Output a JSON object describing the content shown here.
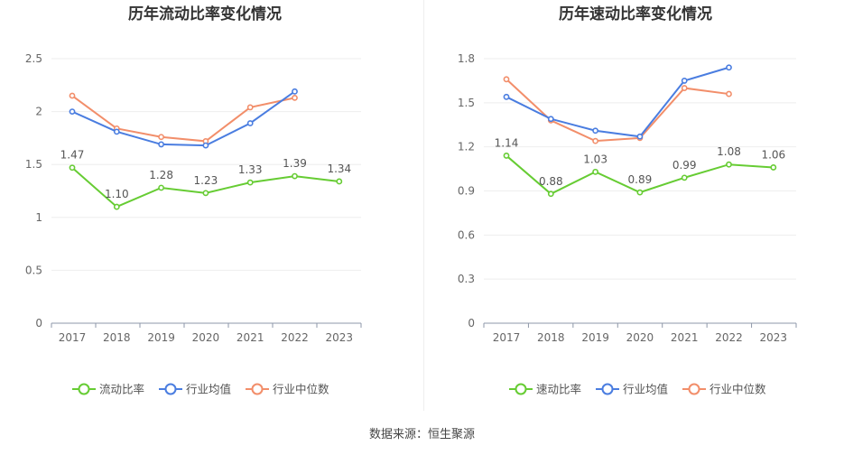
{
  "colors": {
    "series1": "#66cc33",
    "series2": "#4a7de0",
    "series3": "#f28e6a",
    "axis": "#8e97a8",
    "grid": "#eeeeee",
    "tick_text": "#666666",
    "title": "#333333"
  },
  "source_text": "数据来源：恒生聚源",
  "chart_data": [
    {
      "type": "line",
      "title": "历年流动比率变化情况",
      "categories": [
        "2017",
        "2018",
        "2019",
        "2020",
        "2021",
        "2022",
        "2023"
      ],
      "ylim": [
        0,
        2.5
      ],
      "yticks": [
        "0",
        "0.5",
        "1",
        "1.5",
        "2",
        "2.5"
      ],
      "ytick_values": [
        0,
        0.5,
        1,
        1.5,
        2,
        2.5
      ],
      "grid": true,
      "legend_position": "bottom",
      "series": [
        {
          "name": "流动比率",
          "values": [
            1.47,
            1.1,
            1.28,
            1.23,
            1.33,
            1.39,
            1.34
          ],
          "labels": [
            "1.47",
            "1.10",
            "1.28",
            "1.23",
            "1.33",
            "1.39",
            "1.34"
          ]
        },
        {
          "name": "行业均值",
          "values": [
            2.0,
            1.81,
            1.69,
            1.68,
            1.89,
            2.19,
            null
          ]
        },
        {
          "name": "行业中位数",
          "values": [
            2.15,
            1.84,
            1.76,
            1.72,
            2.04,
            2.13,
            null
          ]
        }
      ]
    },
    {
      "type": "line",
      "title": "历年速动比率变化情况",
      "categories": [
        "2017",
        "2018",
        "2019",
        "2020",
        "2021",
        "2022",
        "2023"
      ],
      "ylim": [
        0,
        1.8
      ],
      "yticks": [
        "0",
        "0.3",
        "0.6",
        "0.9",
        "1.2",
        "1.5",
        "1.8"
      ],
      "ytick_values": [
        0,
        0.3,
        0.6,
        0.9,
        1.2,
        1.5,
        1.8
      ],
      "grid": true,
      "legend_position": "bottom",
      "series": [
        {
          "name": "速动比率",
          "values": [
            1.14,
            0.88,
            1.03,
            0.89,
            0.99,
            1.08,
            1.06
          ],
          "labels": [
            "1.14",
            "0.88",
            "1.03",
            "0.89",
            "0.99",
            "1.08",
            "1.06"
          ]
        },
        {
          "name": "行业均值",
          "values": [
            1.54,
            1.39,
            1.31,
            1.27,
            1.65,
            1.74,
            null
          ]
        },
        {
          "name": "行业中位数",
          "values": [
            1.66,
            1.38,
            1.24,
            1.26,
            1.6,
            1.56,
            null
          ]
        }
      ]
    }
  ]
}
